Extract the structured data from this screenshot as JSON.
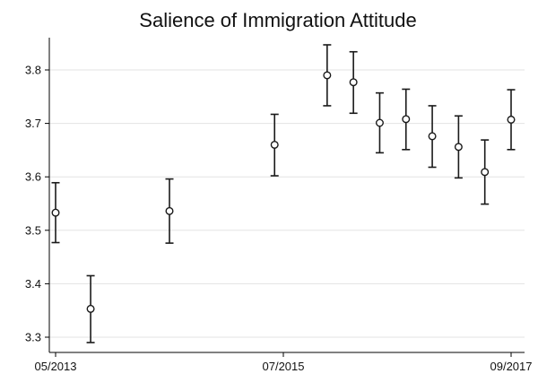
{
  "chart_data": {
    "type": "scatter",
    "title": "Salience of Immigration Attitude",
    "xlabel": "",
    "ylabel": "",
    "grid": true,
    "legend": "none",
    "error_bars": true,
    "xlim": [
      "2013-05",
      "2017-09"
    ],
    "ylim": [
      3.27,
      3.88
    ],
    "x_ticks": [
      "05/2013",
      "07/2015",
      "09/2017"
    ],
    "y_ticks": [
      "3.3",
      "3.4",
      "3.5",
      "3.6",
      "3.7",
      "3.8"
    ],
    "points": [
      {
        "x": "2013-05",
        "y": 3.533,
        "lower": 3.477,
        "upper": 3.589
      },
      {
        "x": "2013-09",
        "y": 3.353,
        "lower": 3.29,
        "upper": 3.415
      },
      {
        "x": "2014-06",
        "y": 3.536,
        "lower": 3.476,
        "upper": 3.596
      },
      {
        "x": "2015-06",
        "y": 3.66,
        "lower": 3.602,
        "upper": 3.717
      },
      {
        "x": "2015-12",
        "y": 3.79,
        "lower": 3.733,
        "upper": 3.847
      },
      {
        "x": "2016-03",
        "y": 3.777,
        "lower": 3.719,
        "upper": 3.834
      },
      {
        "x": "2016-06",
        "y": 3.701,
        "lower": 3.645,
        "upper": 3.757
      },
      {
        "x": "2016-09",
        "y": 3.708,
        "lower": 3.651,
        "upper": 3.764
      },
      {
        "x": "2016-12",
        "y": 3.676,
        "lower": 3.618,
        "upper": 3.733
      },
      {
        "x": "2017-03",
        "y": 3.656,
        "lower": 3.598,
        "upper": 3.714
      },
      {
        "x": "2017-06",
        "y": 3.609,
        "lower": 3.549,
        "upper": 3.669
      },
      {
        "x": "2017-09",
        "y": 3.707,
        "lower": 3.651,
        "upper": 3.763
      }
    ],
    "colors": {
      "marker": "#1a1a1a",
      "grid": "#e3e3e3",
      "axis": "#000000"
    }
  }
}
